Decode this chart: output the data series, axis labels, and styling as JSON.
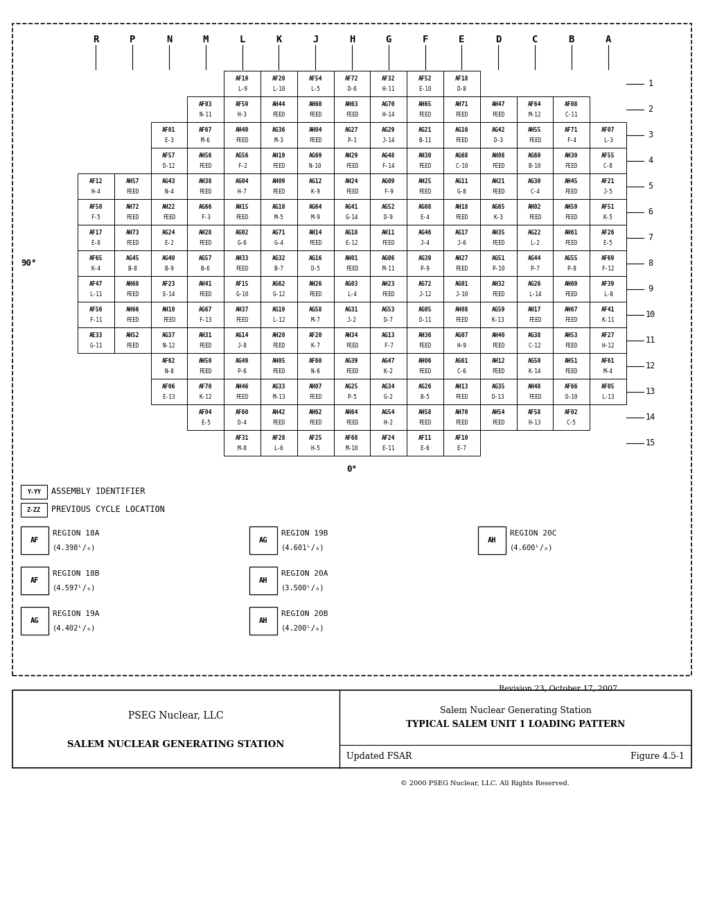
{
  "col_labels": [
    "R",
    "P",
    "N",
    "M",
    "L",
    "K",
    "J",
    "H",
    "G",
    "F",
    "E",
    "D",
    "C",
    "B",
    "A"
  ],
  "row_labels": [
    "1",
    "2",
    "3",
    "4",
    "5",
    "6",
    "7",
    "8",
    "9",
    "10",
    "11",
    "12",
    "13",
    "14",
    "15"
  ],
  "grid": [
    [
      null,
      null,
      null,
      null,
      [
        "AF19",
        "L-9"
      ],
      [
        "AF20",
        "L-10"
      ],
      [
        "AF54",
        "L-5"
      ],
      [
        "AF72",
        "D-6"
      ],
      [
        "AF32",
        "H-11"
      ],
      [
        "AF52",
        "E-10"
      ],
      [
        "AF18",
        "D-8"
      ],
      null,
      null,
      null,
      null
    ],
    [
      null,
      null,
      null,
      [
        "AF03",
        "N-11"
      ],
      [
        "AF59",
        "H-3"
      ],
      [
        "AH44",
        "FEED"
      ],
      [
        "AH60",
        "FEED"
      ],
      [
        "AH63",
        "FEED"
      ],
      [
        "AG70",
        "H-14"
      ],
      [
        "AH65",
        "FEED"
      ],
      [
        "AH71",
        "FEED"
      ],
      [
        "AH47",
        "FEED"
      ],
      [
        "AF64",
        "M-12"
      ],
      [
        "AF08",
        "C-11"
      ],
      null
    ],
    [
      null,
      null,
      [
        "AF01",
        "E-3"
      ],
      [
        "AF67",
        "M-6"
      ],
      [
        "AH49",
        "FEED"
      ],
      [
        "AG36",
        "M-3"
      ],
      [
        "AH04",
        "FEED"
      ],
      [
        "AG27",
        "P-1"
      ],
      [
        "AG29",
        "J-14"
      ],
      [
        "AG21",
        "B-11"
      ],
      [
        "AG16",
        "FEED"
      ],
      [
        "AG42",
        "D-3"
      ],
      [
        "AH55",
        "FEED"
      ],
      [
        "AF71",
        "F-4"
      ],
      [
        "AF07",
        "L-3"
      ]
    ],
    [
      null,
      null,
      [
        "AF57",
        "D-12"
      ],
      [
        "AH56",
        "FEED"
      ],
      [
        "AG56",
        "F-2"
      ],
      [
        "AH19",
        "FEED"
      ],
      [
        "AG69",
        "N-10"
      ],
      [
        "AH29",
        "FEED"
      ],
      [
        "AG48",
        "F-14"
      ],
      [
        "AH30",
        "FEED"
      ],
      [
        "AG68",
        "C-10"
      ],
      [
        "AH08",
        "FEED"
      ],
      [
        "AG60",
        "B-10"
      ],
      [
        "AH30",
        "FEED"
      ],
      [
        "AF55",
        "C-8"
      ]
    ],
    [
      [
        "AF12",
        "H-4"
      ],
      [
        "AH57",
        "FEED"
      ],
      [
        "AG43",
        "N-4"
      ],
      [
        "AH38",
        "FEED"
      ],
      [
        "AG04",
        "H-7"
      ],
      [
        "AH09",
        "FEED"
      ],
      [
        "AG12",
        "K-9"
      ],
      [
        "AH24",
        "FEED"
      ],
      [
        "AG09",
        "F-9"
      ],
      [
        "AH25",
        "FEED"
      ],
      [
        "AG11",
        "G-8"
      ],
      [
        "AH21",
        "FEED"
      ],
      [
        "AG30",
        "C-4"
      ],
      [
        "AH45",
        "FEED"
      ],
      [
        "AF21",
        "J-5"
      ]
    ],
    [
      [
        "AF50",
        "F-5"
      ],
      [
        "AH72",
        "FEED"
      ],
      [
        "AH22",
        "FEED"
      ],
      [
        "AG66",
        "F-3"
      ],
      [
        "AH15",
        "FEED"
      ],
      [
        "AG10",
        "M-5"
      ],
      [
        "AG64",
        "M-9"
      ],
      [
        "AG41",
        "G-14"
      ],
      [
        "AG52",
        "D-9"
      ],
      [
        "AG08",
        "E-4"
      ],
      [
        "AH18",
        "FEED"
      ],
      [
        "AG65",
        "K-3"
      ],
      [
        "AH02",
        "FEED"
      ],
      [
        "AH59",
        "FEED"
      ],
      [
        "AF51",
        "K-5"
      ]
    ],
    [
      [
        "AF17",
        "E-8"
      ],
      [
        "AH73",
        "FEED"
      ],
      [
        "AG24",
        "E-2"
      ],
      [
        "AH28",
        "FEED"
      ],
      [
        "AG02",
        "G-6"
      ],
      [
        "AG71",
        "G-4"
      ],
      [
        "AH14",
        "FEED"
      ],
      [
        "AG18",
        "E-12"
      ],
      [
        "AH11",
        "FEED"
      ],
      [
        "AG46",
        "J-4"
      ],
      [
        "AG17",
        "J-6"
      ],
      [
        "AH35",
        "FEED"
      ],
      [
        "AG22",
        "L-2"
      ],
      [
        "AH61",
        "FEED"
      ],
      [
        "AF26",
        "E-5"
      ]
    ],
    [
      [
        "AF65",
        "K-4"
      ],
      [
        "AG45",
        "B-8"
      ],
      [
        "AG40",
        "B-9"
      ],
      [
        "AG57",
        "B-6"
      ],
      [
        "AH33",
        "FEED"
      ],
      [
        "AG32",
        "B-7"
      ],
      [
        "AG16",
        "D-5"
      ],
      [
        "AH01",
        "FEED"
      ],
      [
        "AG06",
        "M-11"
      ],
      [
        "AG39",
        "P-9"
      ],
      [
        "AH27",
        "FEED"
      ],
      [
        "AG51",
        "P-10"
      ],
      [
        "AG44",
        "P-7"
      ],
      [
        "AG55",
        "P-8"
      ],
      [
        "AF69",
        "F-12"
      ]
    ],
    [
      [
        "AF47",
        "L-11"
      ],
      [
        "AH68",
        "FEED"
      ],
      [
        "AF23",
        "E-14"
      ],
      [
        "AH41",
        "FEED"
      ],
      [
        "AF15",
        "G-10"
      ],
      [
        "AG62",
        "G-12"
      ],
      [
        "AH26",
        "FEED"
      ],
      [
        "AG03",
        "L-4"
      ],
      [
        "AH23",
        "FEED"
      ],
      [
        "AG72",
        "J-12"
      ],
      [
        "AG01",
        "J-10"
      ],
      [
        "AH32",
        "FEED"
      ],
      [
        "AG26",
        "L-14"
      ],
      [
        "AH69",
        "FEED"
      ],
      [
        "AF39",
        "L-8"
      ]
    ],
    [
      [
        "AF56",
        "F-11"
      ],
      [
        "AH66",
        "FEED"
      ],
      [
        "AH10",
        "FEED"
      ],
      [
        "AG67",
        "F-13"
      ],
      [
        "AH37",
        "FEED"
      ],
      [
        "AG19",
        "L-12"
      ],
      [
        "AG58",
        "M-7"
      ],
      [
        "AG31",
        "J-2"
      ],
      [
        "AG53",
        "D-7"
      ],
      [
        "AG05",
        "D-11"
      ],
      [
        "AH08",
        "FEED"
      ],
      [
        "AG59",
        "K-13"
      ],
      [
        "AH17",
        "FEED"
      ],
      [
        "AH67",
        "FEED"
      ],
      [
        "AF41",
        "K-11"
      ]
    ],
    [
      [
        "AE33",
        "G-11"
      ],
      [
        "AH52",
        "FEED"
      ],
      [
        "AG37",
        "N-12"
      ],
      [
        "AH31",
        "FEED"
      ],
      [
        "AG14",
        "J-8"
      ],
      [
        "AH20",
        "FEED"
      ],
      [
        "AF20",
        "K-7"
      ],
      [
        "AH34",
        "FEED"
      ],
      [
        "AG13",
        "F-7"
      ],
      [
        "AH36",
        "FEED"
      ],
      [
        "AG07",
        "H-9"
      ],
      [
        "AH40",
        "FEED"
      ],
      [
        "AG38",
        "C-12"
      ],
      [
        "AH53",
        "FEED"
      ],
      [
        "AF27",
        "H-12"
      ]
    ],
    [
      null,
      null,
      [
        "AF62",
        "N-8"
      ],
      [
        "AH50",
        "FEED"
      ],
      [
        "AG49",
        "P-6"
      ],
      [
        "AH05",
        "FEED"
      ],
      [
        "AF60",
        "N-6"
      ],
      [
        "AG39",
        "FEED"
      ],
      [
        "AG47",
        "K-2"
      ],
      [
        "AH06",
        "FEED"
      ],
      [
        "AG61",
        "C-6"
      ],
      [
        "AH12",
        "FEED"
      ],
      [
        "AG50",
        "K-14"
      ],
      [
        "AH51",
        "FEED"
      ],
      [
        "AF61",
        "M-4"
      ]
    ],
    [
      null,
      null,
      [
        "AF06",
        "E-13"
      ],
      [
        "AF70",
        "K-12"
      ],
      [
        "AH46",
        "FEED"
      ],
      [
        "AG33",
        "M-13"
      ],
      [
        "AH07",
        "FEED"
      ],
      [
        "AG25",
        "P-5"
      ],
      [
        "AG34",
        "G-2"
      ],
      [
        "AG26",
        "B-5"
      ],
      [
        "AH13",
        "FEED"
      ],
      [
        "AG35",
        "D-13"
      ],
      [
        "AH48",
        "FEED"
      ],
      [
        "AF66",
        "D-10"
      ],
      [
        "AF05",
        "L-13"
      ]
    ],
    [
      null,
      null,
      null,
      [
        "AF04",
        "E-5"
      ],
      [
        "AF60",
        "D-4"
      ],
      [
        "AH42",
        "FEED"
      ],
      [
        "AH62",
        "FEED"
      ],
      [
        "AH64",
        "FEED"
      ],
      [
        "AG54",
        "H-2"
      ],
      [
        "AH58",
        "FEED"
      ],
      [
        "AH70",
        "FEED"
      ],
      [
        "AH54",
        "FEED"
      ],
      [
        "AF58",
        "H-13"
      ],
      [
        "AF02",
        "C-5"
      ],
      null
    ],
    [
      null,
      null,
      null,
      null,
      [
        "AF31",
        "M-8"
      ],
      [
        "AF28",
        "L-6"
      ],
      [
        "AF25",
        "H-5"
      ],
      [
        "AF68",
        "M-10"
      ],
      [
        "AF24",
        "E-11"
      ],
      [
        "AF11",
        "E-6"
      ],
      [
        "AF10",
        "E-7"
      ],
      null,
      null,
      null,
      null
    ]
  ],
  "revision": "Revision 23, October 17, 2007",
  "company": "PSEG Nuclear, LLC",
  "station": "SALEM NUCLEAR GENERATING STATION",
  "report_title": "Salem Nuclear Generating Station",
  "report_subtitle": "TYPICAL SALEM UNIT 1 LOADING PATTERN",
  "doc_label": "Updated FSAR",
  "figure": "Figure 4.5-1",
  "copyright": "© 2000 PSEG Nuclear, LLC. All Rights Reserved."
}
